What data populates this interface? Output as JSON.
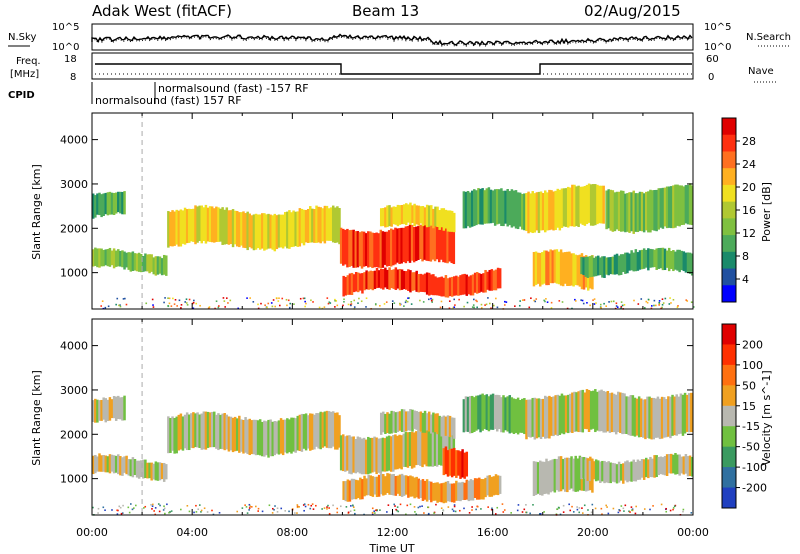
{
  "header": {
    "station": "Adak West (fitACF)",
    "beam": "Beam 13",
    "date": "02/Aug/2015"
  },
  "panels": {
    "nsky_label": "N.Sky",
    "nsearch_label": "N.Search",
    "freq_label_line1": "Freq.",
    "freq_label_line2": "[MHz]",
    "nave_label": "Nave",
    "cpid_label": "CPID",
    "cpid_entries": [
      "normalsound (fast) -157 RF",
      "normalsound (fast) 157 RF"
    ],
    "noise_ticks": [
      "10^5",
      "10^0"
    ],
    "freq_ticks": [
      "18",
      "8"
    ],
    "nave_ticks": [
      "60",
      "0"
    ]
  },
  "chart_data": [
    {
      "type": "heatmap",
      "title": "",
      "xlabel": "Time UT",
      "ylabel": "Slant Range [km]",
      "xticks": [
        "00:00",
        "04:00",
        "08:00",
        "12:00",
        "16:00",
        "20:00",
        "00:00"
      ],
      "xlim_hours": [
        0,
        24
      ],
      "yticks": [
        1000,
        2000,
        3000,
        4000
      ],
      "ylim": [
        180,
        4600
      ],
      "colorbar": {
        "label": "Power [dB]",
        "ticks": [
          "4",
          "8",
          "12",
          "16",
          "20",
          "24",
          "28"
        ],
        "colors": [
          "#0000ff",
          "#2050a0",
          "#1a8a6a",
          "#4caa5a",
          "#7fc040",
          "#b0c832",
          "#f0e020",
          "#ffb020",
          "#ff7020",
          "#ff3010",
          "#e00000"
        ]
      },
      "bands": [
        {
          "t0": 0.0,
          "t1": 1.3,
          "r0": 2250,
          "r1": 2750,
          "level": 3
        },
        {
          "t0": 0.0,
          "t1": 3.0,
          "r0": 1050,
          "r1": 1450,
          "level": 4
        },
        {
          "t0": 3.0,
          "t1": 9.9,
          "r0": 1600,
          "r1": 2400,
          "level": 6
        },
        {
          "t0": 9.9,
          "t1": 14.5,
          "r0": 1200,
          "r1": 2000,
          "level": 9
        },
        {
          "t0": 11.5,
          "t1": 14.5,
          "r0": 2000,
          "r1": 2450,
          "level": 6
        },
        {
          "t0": 10.0,
          "t1": 16.3,
          "r0": 550,
          "r1": 1000,
          "level": 9
        },
        {
          "t0": 14.8,
          "t1": 17.3,
          "r0": 2000,
          "r1": 2800,
          "level": 3
        },
        {
          "t0": 17.3,
          "t1": 20.5,
          "r0": 2000,
          "r1": 2900,
          "level": 6
        },
        {
          "t0": 20.5,
          "t1": 24.0,
          "r0": 2000,
          "r1": 2900,
          "level": 4
        },
        {
          "t0": 17.6,
          "t1": 20.0,
          "r0": 650,
          "r1": 1400,
          "level": 7
        },
        {
          "t0": 19.5,
          "t1": 24.0,
          "r0": 1000,
          "r1": 1450,
          "level": 3
        }
      ]
    },
    {
      "type": "heatmap",
      "title": "",
      "xlabel": "Time UT",
      "ylabel": "Slant Range [km]",
      "xticks": [
        "00:00",
        "04:00",
        "08:00",
        "12:00",
        "16:00",
        "20:00",
        "00:00"
      ],
      "xlim_hours": [
        0,
        24
      ],
      "yticks": [
        1000,
        2000,
        3000,
        4000
      ],
      "ylim": [
        180,
        4600
      ],
      "colorbar": {
        "label": "Velocity [m s^-1]",
        "ticks": [
          "200",
          "100",
          "50",
          "15",
          "-15",
          "-50",
          "-100",
          "-200"
        ],
        "colors": [
          "#2040c0",
          "#3070a0",
          "#3a9a60",
          "#70c040",
          "#b8b8b0",
          "#f0a020",
          "#ff7010",
          "#ff3000",
          "#e00000"
        ]
      },
      "bands": [
        {
          "t0": 0.0,
          "t1": 1.3,
          "r0": 2250,
          "r1": 2750,
          "level": 4
        },
        {
          "t0": 0.0,
          "t1": 3.0,
          "r0": 1050,
          "r1": 1450,
          "level": 4
        },
        {
          "t0": 3.0,
          "t1": 9.9,
          "r0": 1600,
          "r1": 2400,
          "level": 4
        },
        {
          "t0": 9.9,
          "t1": 14.5,
          "r0": 1200,
          "r1": 2000,
          "level": 4
        },
        {
          "t0": 11.5,
          "t1": 14.5,
          "r0": 2000,
          "r1": 2450,
          "level": 4
        },
        {
          "t0": 10.0,
          "t1": 16.3,
          "r0": 550,
          "r1": 1000,
          "level": 5
        },
        {
          "t0": 14.8,
          "t1": 17.3,
          "r0": 2000,
          "r1": 2800,
          "level": 3
        },
        {
          "t0": 17.3,
          "t1": 24.0,
          "r0": 2000,
          "r1": 2900,
          "level": 4
        },
        {
          "t0": 17.6,
          "t1": 20.0,
          "r0": 650,
          "r1": 1400,
          "level": 4
        },
        {
          "t0": 19.5,
          "t1": 24.0,
          "r0": 1000,
          "r1": 1450,
          "level": 4
        },
        {
          "t0": 14.0,
          "t1": 15.0,
          "r0": 1100,
          "r1": 1700,
          "level": 7
        }
      ]
    }
  ]
}
